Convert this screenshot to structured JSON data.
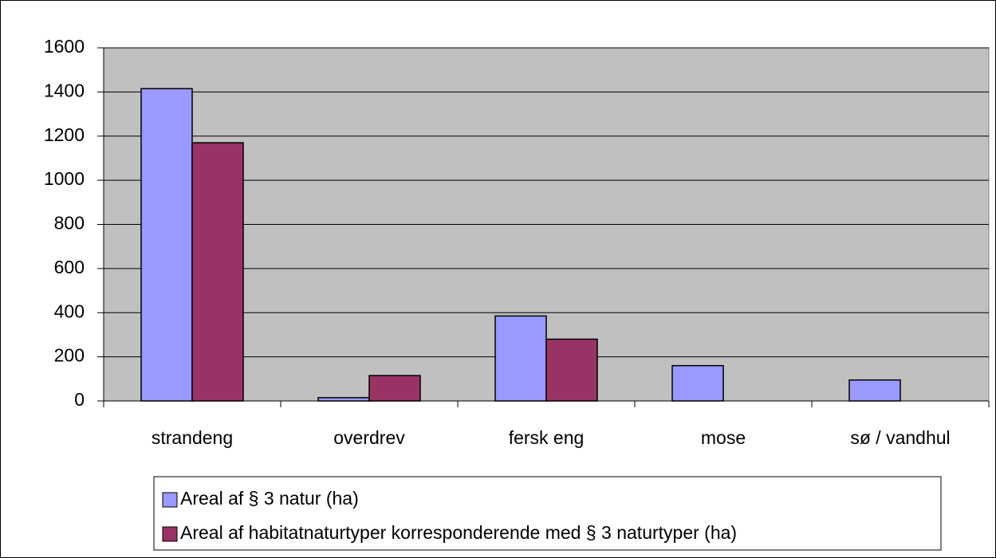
{
  "chart_data": {
    "type": "bar",
    "categories": [
      "strandeng",
      "overdrev",
      "fersk eng",
      "mose",
      "sø / vandhul"
    ],
    "series": [
      {
        "name": "Areal af § 3 natur (ha)",
        "color": "#9999ff",
        "values": [
          1415,
          15,
          385,
          160,
          95
        ]
      },
      {
        "name": "Areal af habitatnaturtyper korresponderende med § 3 naturtyper (ha)",
        "color": "#993366",
        "values": [
          1170,
          115,
          280,
          0,
          0
        ]
      }
    ],
    "ylim": [
      0,
      1600
    ],
    "yticks": [
      0,
      200,
      400,
      600,
      800,
      1000,
      1200,
      1400,
      1600
    ],
    "grid": true,
    "plot_background": "#c0c0c0",
    "legend": "bottom"
  }
}
